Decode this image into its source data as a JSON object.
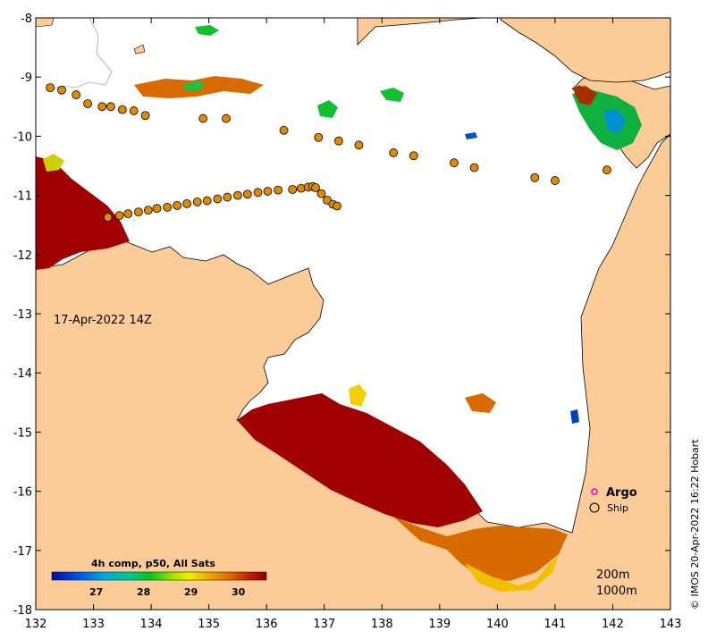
{
  "map": {
    "date_label": "17-Apr-2022 14Z",
    "credit": "© IMOS 20-Apr-2022 16:22 Hobart",
    "x_ticks": [
      "132",
      "133",
      "134",
      "135",
      "136",
      "137",
      "138",
      "139",
      "140",
      "141",
      "142",
      "143"
    ],
    "y_ticks": [
      "-8",
      "-9",
      "-10",
      "-11",
      "-12",
      "-13",
      "-14",
      "-15",
      "-16",
      "-17",
      "-18"
    ],
    "lon_range": [
      132,
      143
    ],
    "lat_range": [
      -18,
      -8
    ],
    "colors": {
      "land": "#fbcb98",
      "sst_hot": "#a00000",
      "sst_warm": "#d86a00",
      "sst_mid": "#e8a000",
      "sst_yellow": "#f0e000",
      "sst_green": "#10c030",
      "sst_cyan": "#00b0c0",
      "sst_blue": "#0040d0",
      "ship_marker": "#e08a00"
    }
  },
  "legend": {
    "argo_label": "Argo",
    "ship_label": "Ship",
    "depth_200": "200m",
    "depth_1000": "1000m"
  },
  "colorbar": {
    "title": "4h comp, p50, All Sats",
    "labels": [
      "27",
      "28",
      "29",
      "30"
    ]
  },
  "ship_track": [
    {
      "lon": 132.25,
      "lat": -9.18
    },
    {
      "lon": 132.45,
      "lat": -9.22
    },
    {
      "lon": 132.7,
      "lat": -9.3
    },
    {
      "lon": 132.9,
      "lat": -9.45
    },
    {
      "lon": 133.15,
      "lat": -9.5
    },
    {
      "lon": 133.3,
      "lat": -9.5
    },
    {
      "lon": 133.5,
      "lat": -9.55
    },
    {
      "lon": 133.7,
      "lat": -9.57
    },
    {
      "lon": 133.9,
      "lat": -9.65
    },
    {
      "lon": 134.9,
      "lat": -9.7
    },
    {
      "lon": 135.3,
      "lat": -9.7
    },
    {
      "lon": 136.3,
      "lat": -9.9
    },
    {
      "lon": 136.9,
      "lat": -10.02
    },
    {
      "lon": 137.25,
      "lat": -10.08
    },
    {
      "lon": 137.6,
      "lat": -10.15
    },
    {
      "lon": 138.2,
      "lat": -10.28
    },
    {
      "lon": 138.55,
      "lat": -10.33
    },
    {
      "lon": 139.25,
      "lat": -10.45
    },
    {
      "lon": 139.6,
      "lat": -10.53
    },
    {
      "lon": 140.65,
      "lat": -10.7
    },
    {
      "lon": 141.0,
      "lat": -10.75
    },
    {
      "lon": 141.9,
      "lat": -10.57
    },
    {
      "lon": 133.25,
      "lat": -11.37
    },
    {
      "lon": 133.45,
      "lat": -11.34
    },
    {
      "lon": 133.6,
      "lat": -11.31
    },
    {
      "lon": 133.78,
      "lat": -11.28
    },
    {
      "lon": 133.95,
      "lat": -11.25
    },
    {
      "lon": 134.1,
      "lat": -11.22
    },
    {
      "lon": 134.28,
      "lat": -11.2
    },
    {
      "lon": 134.45,
      "lat": -11.17
    },
    {
      "lon": 134.62,
      "lat": -11.14
    },
    {
      "lon": 134.8,
      "lat": -11.11
    },
    {
      "lon": 134.97,
      "lat": -11.09
    },
    {
      "lon": 135.15,
      "lat": -11.06
    },
    {
      "lon": 135.32,
      "lat": -11.03
    },
    {
      "lon": 135.5,
      "lat": -11.0
    },
    {
      "lon": 135.67,
      "lat": -10.98
    },
    {
      "lon": 135.85,
      "lat": -10.95
    },
    {
      "lon": 136.02,
      "lat": -10.93
    },
    {
      "lon": 136.2,
      "lat": -10.91
    },
    {
      "lon": 136.45,
      "lat": -10.9
    },
    {
      "lon": 136.6,
      "lat": -10.88
    },
    {
      "lon": 136.72,
      "lat": -10.86
    },
    {
      "lon": 136.8,
      "lat": -10.85
    },
    {
      "lon": 136.85,
      "lat": -10.87
    },
    {
      "lon": 136.95,
      "lat": -10.97
    },
    {
      "lon": 137.05,
      "lat": -11.08
    },
    {
      "lon": 137.15,
      "lat": -11.15
    },
    {
      "lon": 137.22,
      "lat": -11.18
    }
  ]
}
